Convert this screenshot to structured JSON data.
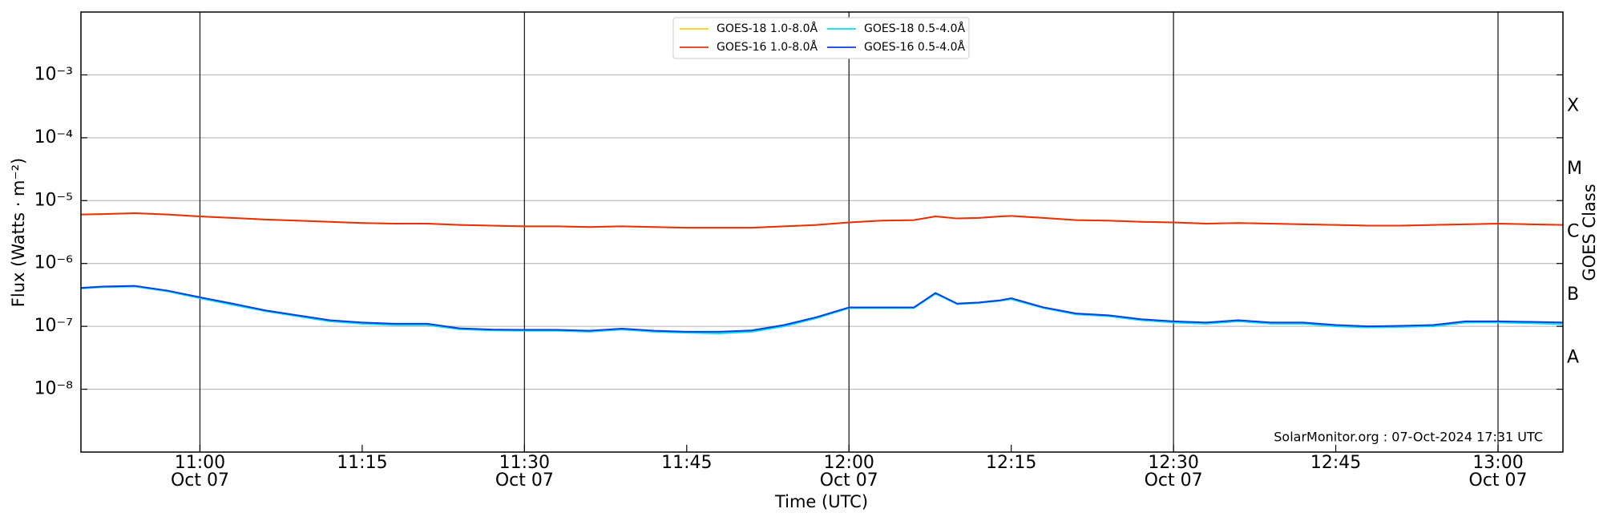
{
  "chart_data": {
    "type": "line",
    "xlabel": "Time (UTC)",
    "ylabel": "Flux (Watts · m⁻²)",
    "y2label": "GOES Class",
    "yscale": "log",
    "grid": true,
    "legend": "upper center",
    "annotation": "SolarMonitor.org : 07-Oct-2024 17:31 UTC",
    "xlim": [
      "10:49",
      "13:06"
    ],
    "xticks": [
      {
        "value": "11:00",
        "label": "11:00",
        "date": "Oct 07"
      },
      {
        "value": "11:15",
        "label": "11:15"
      },
      {
        "value": "11:30",
        "label": "11:30",
        "date": "Oct 07"
      },
      {
        "value": "11:45",
        "label": "11:45"
      },
      {
        "value": "12:00",
        "label": "12:00",
        "date": "Oct 07"
      },
      {
        "value": "12:15",
        "label": "12:15"
      },
      {
        "value": "12:30",
        "label": "12:30",
        "date": "Oct 07"
      },
      {
        "value": "12:45",
        "label": "12:45"
      },
      {
        "value": "13:00",
        "label": "13:00",
        "date": "Oct 07"
      }
    ],
    "ylim": [
      1e-09,
      0.01
    ],
    "yticks": [
      {
        "value": 0.001,
        "label": "10⁻³"
      },
      {
        "value": 0.0001,
        "label": "10⁻⁴"
      },
      {
        "value": 1e-05,
        "label": "10⁻⁵"
      },
      {
        "value": 1e-06,
        "label": "10⁻⁶"
      },
      {
        "value": 1e-07,
        "label": "10⁻⁷"
      },
      {
        "value": 1e-08,
        "label": "10⁻⁸"
      }
    ],
    "y2lim": [
      1e-09,
      0.01
    ],
    "y2ticks": [
      {
        "value": 0.000316,
        "label": "X"
      },
      {
        "value": 3.16e-05,
        "label": "M"
      },
      {
        "value": 3.16e-06,
        "label": "C"
      },
      {
        "value": 3.16e-07,
        "label": "B"
      },
      {
        "value": 3.16e-08,
        "label": "A"
      }
    ],
    "x": [
      "10:49",
      "10:51",
      "10:54",
      "10:57",
      "11:00",
      "11:03",
      "11:06",
      "11:09",
      "11:12",
      "11:15",
      "11:18",
      "11:21",
      "11:24",
      "11:27",
      "11:30",
      "11:33",
      "11:36",
      "11:39",
      "11:42",
      "11:45",
      "11:48",
      "11:51",
      "11:54",
      "11:57",
      "12:00",
      "12:03",
      "12:06",
      "12:08",
      "12:10",
      "12:12",
      "12:14",
      "12:15",
      "12:18",
      "12:21",
      "12:24",
      "12:27",
      "12:30",
      "12:33",
      "12:36",
      "12:39",
      "12:42",
      "12:45",
      "12:48",
      "12:51",
      "12:54",
      "12:57",
      "13:00",
      "13:03",
      "13:06"
    ],
    "series": [
      {
        "name": "GOES-18 1.0-8.0Å",
        "color": "#f5d000",
        "values": [
          6e-06,
          6.1e-06,
          6.3e-06,
          6e-06,
          5.6e-06,
          5.3e-06,
          5e-06,
          4.8e-06,
          4.6e-06,
          4.4e-06,
          4.3e-06,
          4.3e-06,
          4.1e-06,
          4e-06,
          3.9e-06,
          3.9e-06,
          3.8e-06,
          3.9e-06,
          3.8e-06,
          3.7e-06,
          3.7e-06,
          3.7e-06,
          3.9e-06,
          4.1e-06,
          4.5e-06,
          4.8e-06,
          4.9e-06,
          5.6e-06,
          5.2e-06,
          5.3e-06,
          5.6e-06,
          5.7e-06,
          5.3e-06,
          4.9e-06,
          4.8e-06,
          4.6e-06,
          4.5e-06,
          4.3e-06,
          4.4e-06,
          4.3e-06,
          4.2e-06,
          4.1e-06,
          4e-06,
          4e-06,
          4.1e-06,
          4.2e-06,
          4.3e-06,
          4.2e-06,
          4.1e-06
        ]
      },
      {
        "name": "GOES-16 1.0-8.0Å",
        "color": "#e8300e",
        "values": [
          6e-06,
          6.1e-06,
          6.3e-06,
          6e-06,
          5.6e-06,
          5.3e-06,
          5e-06,
          4.8e-06,
          4.6e-06,
          4.4e-06,
          4.3e-06,
          4.3e-06,
          4.1e-06,
          4e-06,
          3.9e-06,
          3.9e-06,
          3.8e-06,
          3.9e-06,
          3.8e-06,
          3.7e-06,
          3.7e-06,
          3.7e-06,
          3.9e-06,
          4.1e-06,
          4.5e-06,
          4.8e-06,
          4.9e-06,
          5.6e-06,
          5.2e-06,
          5.3e-06,
          5.6e-06,
          5.7e-06,
          5.3e-06,
          4.9e-06,
          4.8e-06,
          4.6e-06,
          4.5e-06,
          4.3e-06,
          4.4e-06,
          4.3e-06,
          4.2e-06,
          4.1e-06,
          4e-06,
          4e-06,
          4.1e-06,
          4.2e-06,
          4.3e-06,
          4.2e-06,
          4.1e-06
        ]
      },
      {
        "name": "GOES-18 0.5-4.0Å",
        "color": "#00e0f0",
        "values": [
          4e-07,
          4.2e-07,
          4.3e-07,
          3.6e-07,
          2.8e-07,
          2.2e-07,
          1.75e-07,
          1.45e-07,
          1.2e-07,
          1.1e-07,
          1.05e-07,
          1.05e-07,
          9e-08,
          8.6e-08,
          8.5e-08,
          8.5e-08,
          8.2e-08,
          8.9e-08,
          8.2e-08,
          7.9e-08,
          7.7e-08,
          8.2e-08,
          1e-07,
          1.35e-07,
          1.95e-07,
          1.95e-07,
          1.95e-07,
          3.3e-07,
          2.25e-07,
          2.35e-07,
          2.55e-07,
          2.7e-07,
          1.95e-07,
          1.55e-07,
          1.45e-07,
          1.25e-07,
          1.15e-07,
          1.1e-07,
          1.2e-07,
          1.1e-07,
          1.1e-07,
          1e-07,
          9.6e-08,
          9.8e-08,
          1e-07,
          1.15e-07,
          1.15e-07,
          1.12e-07,
          1.08e-07
        ]
      },
      {
        "name": "GOES-16 0.5-4.0Å",
        "color": "#0a3fe0",
        "values": [
          4.1e-07,
          4.3e-07,
          4.4e-07,
          3.7e-07,
          2.9e-07,
          2.3e-07,
          1.8e-07,
          1.5e-07,
          1.25e-07,
          1.15e-07,
          1.1e-07,
          1.1e-07,
          9.3e-08,
          8.9e-08,
          8.8e-08,
          8.8e-08,
          8.5e-08,
          9.2e-08,
          8.5e-08,
          8.2e-08,
          8.2e-08,
          8.6e-08,
          1.05e-07,
          1.4e-07,
          2e-07,
          2e-07,
          2e-07,
          3.4e-07,
          2.3e-07,
          2.4e-07,
          2.6e-07,
          2.8e-07,
          2e-07,
          1.6e-07,
          1.5e-07,
          1.3e-07,
          1.2e-07,
          1.15e-07,
          1.25e-07,
          1.15e-07,
          1.15e-07,
          1.05e-07,
          1e-07,
          1.02e-07,
          1.05e-07,
          1.2e-07,
          1.2e-07,
          1.18e-07,
          1.15e-07
        ]
      }
    ]
  }
}
